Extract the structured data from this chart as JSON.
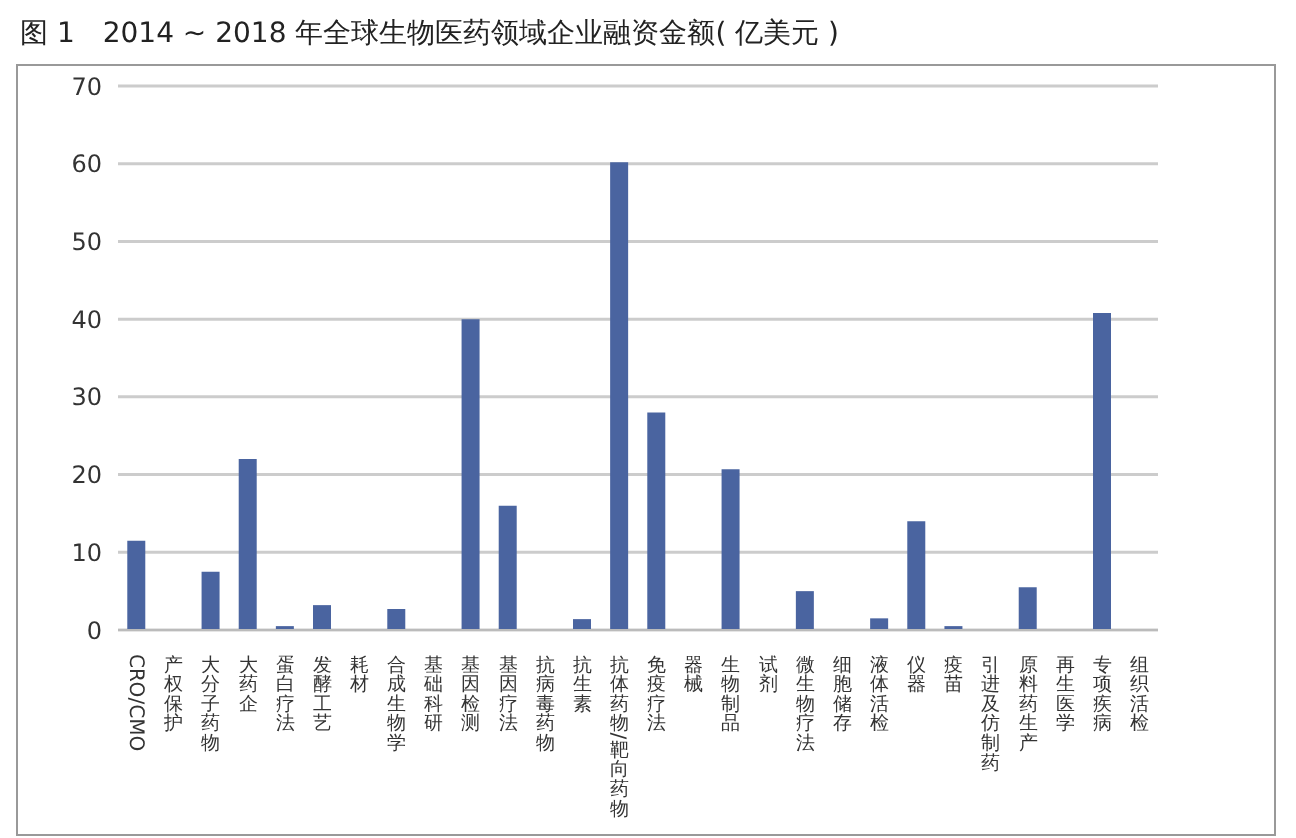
{
  "chart_data": {
    "type": "bar",
    "title": "图 1　2014 ~ 2018 年全球生物医药领域企业融资金额( 亿美元 )",
    "categories": [
      "CRO/CMO",
      "产权保护",
      "大分子药物",
      "大药企",
      "蛋白疗法",
      "发酵工艺",
      "耗材",
      "合成生物学",
      "基础科研",
      "基因检测",
      "基因疗法",
      "抗病毒药物",
      "抗生素",
      "抗体药物/靶向药物",
      "免疫疗法",
      "器械",
      "生物制品",
      "试剂",
      "微生物疗法",
      "细胞储存",
      "液体活检",
      "仪器",
      "疫苗",
      "引进及仿制药",
      "原料药生产",
      "再生医学",
      "专项疾病",
      "组织活检"
    ],
    "values": [
      11.5,
      0,
      7.5,
      22,
      0.5,
      3.2,
      0,
      2.7,
      0,
      40,
      16,
      0,
      1.4,
      60.2,
      28,
      0,
      20.7,
      0,
      5,
      0,
      1.5,
      14,
      0.5,
      0,
      5.5,
      0,
      40.8,
      0
    ],
    "color": "#4a64a0",
    "ylim": [
      0,
      70
    ],
    "yticks": [
      0,
      10,
      20,
      30,
      40,
      50,
      60,
      70
    ],
    "grid": "y"
  }
}
